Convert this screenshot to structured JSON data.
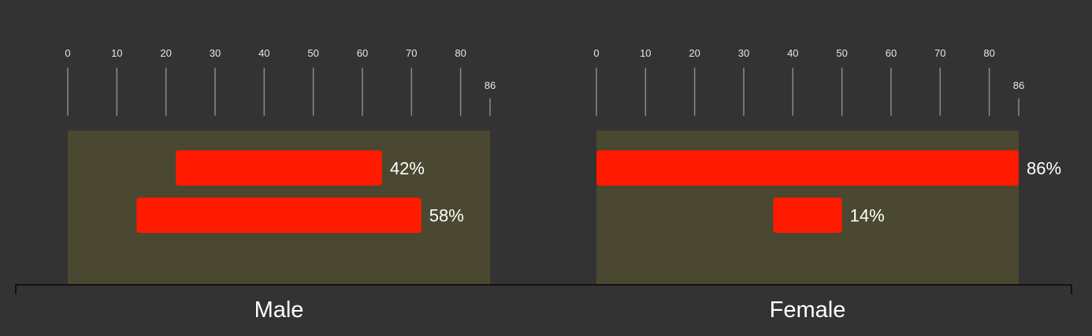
{
  "chart_data": {
    "type": "bar",
    "orientation": "horizontal",
    "colors": {
      "background": "#333333",
      "panel": "#4a4830",
      "bar": "#ff1a00",
      "tick": "#8a8a8a",
      "text": "#ffffff",
      "axis": "#111111"
    },
    "x_axis": {
      "range": [
        0,
        86
      ],
      "ticks": [
        0,
        10,
        20,
        30,
        40,
        50,
        60,
        70,
        80
      ],
      "end_tick": 86
    },
    "panels": [
      {
        "label": "Male",
        "bars": [
          {
            "start": 22,
            "end": 64,
            "label": "42%"
          },
          {
            "start": 14,
            "end": 72,
            "label": "58%"
          }
        ]
      },
      {
        "label": "Female",
        "bars": [
          {
            "start": 0,
            "end": 86,
            "label": "86%"
          },
          {
            "start": 36,
            "end": 50,
            "label": "14%"
          }
        ]
      }
    ]
  }
}
